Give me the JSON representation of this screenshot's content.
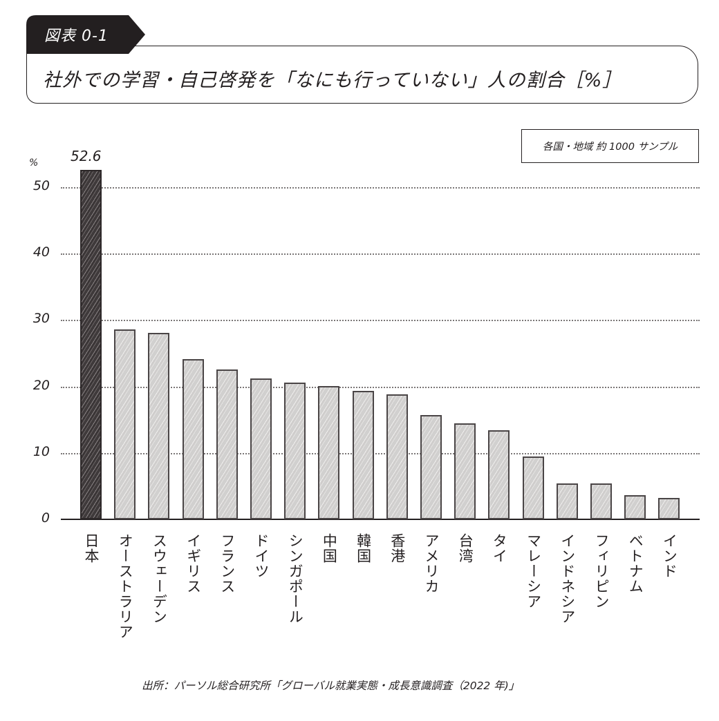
{
  "figure": {
    "tag": "図表 0-1",
    "title": "社外での学習・自己啓発を「なにも行っていない」人の割合［%］",
    "sample_note": "各国・地域 約 1000 サンプル",
    "source": "出所：パーソル総合研究所「グローバル就業実態・成長意識調査（2022 年)」"
  },
  "chart_data": {
    "type": "bar",
    "title": "社外での学習・自己啓発を「なにも行っていない」人の割合［%］",
    "xlabel": "",
    "ylabel": "%",
    "ylim": [
      0,
      55
    ],
    "yticks": [
      0,
      10,
      20,
      30,
      40,
      50
    ],
    "grid": true,
    "legend": null,
    "annotation": "各国・地域 約 1000 サンプル",
    "highlight": {
      "category": "日本",
      "color": "#3f3a3b",
      "label": "52.6"
    },
    "default_color": "#d3d2d1",
    "categories": [
      "日本",
      "オーストラリア",
      "スウェーデン",
      "イギリス",
      "フランス",
      "ドイツ",
      "シンガポール",
      "中国",
      "韓国",
      "香港",
      "アメリカ",
      "台湾",
      "タイ",
      "マレーシア",
      "インドネシア",
      "フィリピン",
      "ベトナム",
      "インド"
    ],
    "values": [
      52.6,
      28.6,
      28.1,
      24.1,
      22.6,
      21.2,
      20.6,
      20.1,
      19.3,
      18.8,
      15.7,
      14.5,
      13.4,
      9.5,
      5.4,
      5.4,
      3.6,
      3.2
    ]
  },
  "axis": {
    "unit": "%",
    "ticks": [
      "0",
      "10",
      "20",
      "30",
      "40",
      "50"
    ]
  }
}
